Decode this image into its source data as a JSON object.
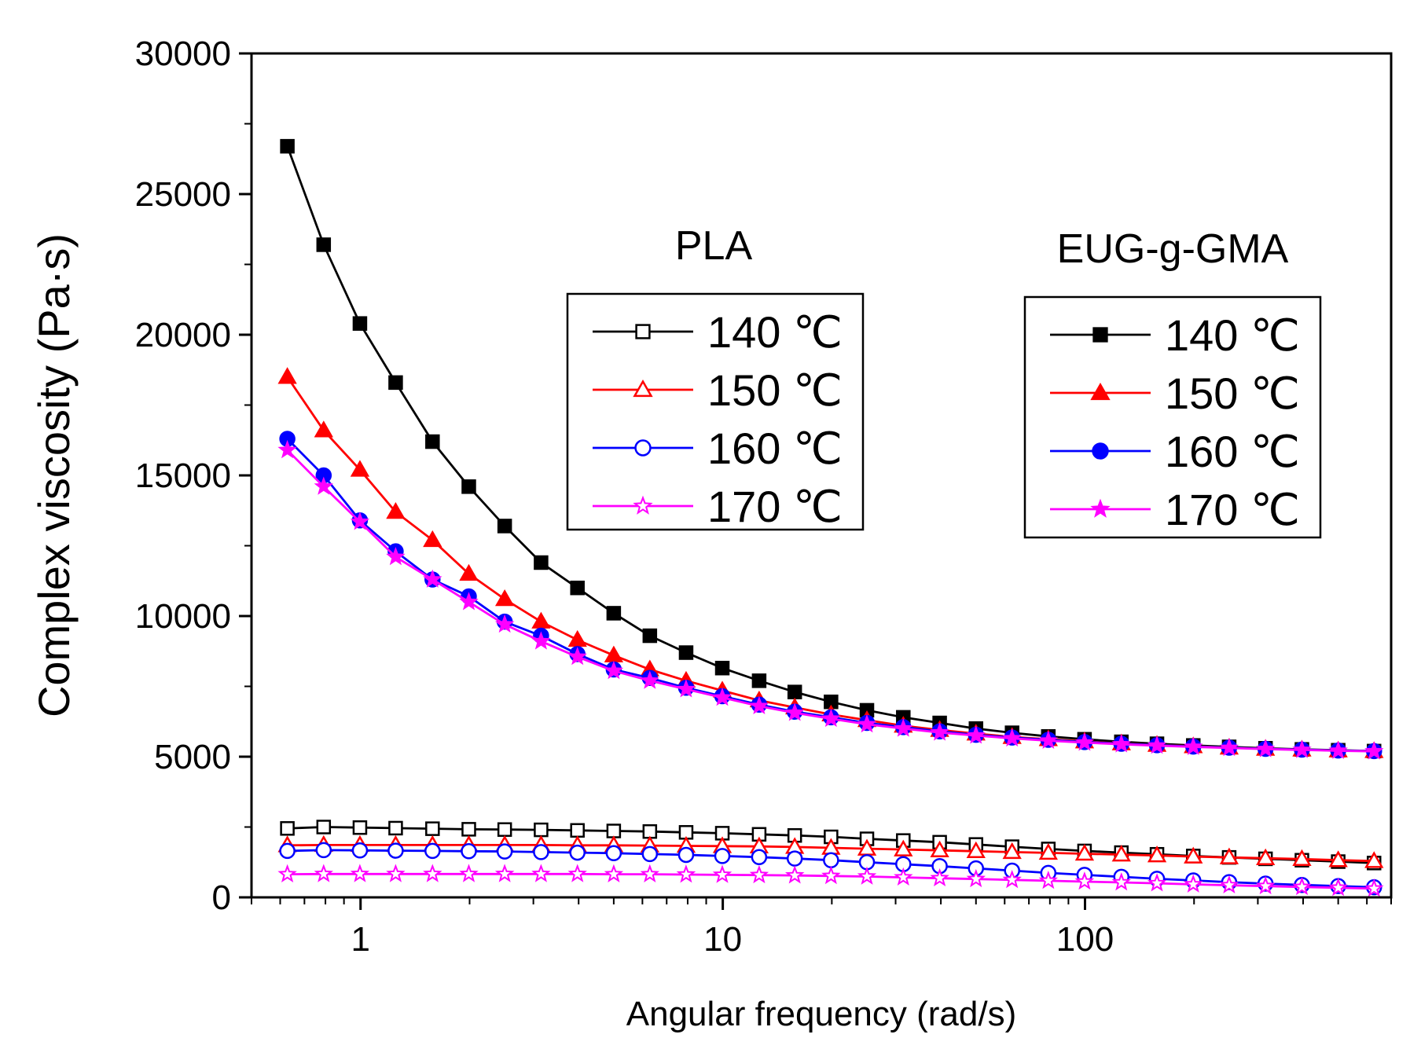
{
  "chart_data": {
    "type": "line",
    "xscale": "log",
    "xlabel": "Angular frequency (rad/s)",
    "ylabel": "Complex viscosity (Pa·s)",
    "xlim": [
      0.5,
      700
    ],
    "ylim": [
      0,
      30000
    ],
    "x_ticks": [
      1,
      10,
      100
    ],
    "x_tick_labels": [
      "1",
      "10",
      "100"
    ],
    "y_ticks": [
      0,
      5000,
      10000,
      15000,
      20000,
      25000,
      30000
    ],
    "y_tick_labels": [
      "0",
      "5000",
      "10000",
      "15000",
      "20000",
      "25000",
      "30000"
    ],
    "x": [
      0.628,
      0.791,
      0.996,
      1.25,
      1.58,
      1.99,
      2.5,
      3.15,
      3.97,
      5.0,
      6.29,
      7.92,
      9.97,
      12.6,
      15.8,
      19.9,
      25.0,
      31.5,
      39.7,
      50.0,
      62.9,
      79.2,
      99.7,
      126,
      158,
      199,
      250,
      315,
      397,
      500,
      628
    ],
    "legends": [
      {
        "title": "PLA",
        "labels": [
          "140 ℃",
          "150 ℃",
          "160 ℃",
          "170 ℃"
        ]
      },
      {
        "title": "EUG-g-GMA",
        "labels": [
          "140 ℃",
          "150 ℃",
          "160 ℃",
          "170 ℃"
        ]
      }
    ],
    "series": [
      {
        "name": "PLA 140 ℃",
        "group": "PLA",
        "color": "#000000",
        "marker": "square",
        "filled": false,
        "values": [
          2450,
          2500,
          2480,
          2460,
          2440,
          2420,
          2410,
          2400,
          2380,
          2360,
          2340,
          2310,
          2280,
          2240,
          2200,
          2150,
          2080,
          2020,
          1960,
          1880,
          1800,
          1720,
          1650,
          1590,
          1530,
          1470,
          1420,
          1370,
          1320,
          1270,
          1220
        ]
      },
      {
        "name": "PLA 150 ℃",
        "group": "PLA",
        "color": "#ff0000",
        "marker": "triangle",
        "filled": false,
        "values": [
          1850,
          1860,
          1860,
          1860,
          1860,
          1860,
          1860,
          1860,
          1850,
          1850,
          1840,
          1830,
          1820,
          1810,
          1790,
          1760,
          1730,
          1700,
          1670,
          1640,
          1610,
          1580,
          1550,
          1520,
          1490,
          1450,
          1420,
          1390,
          1360,
          1320,
          1290
        ]
      },
      {
        "name": "PLA 160 ℃",
        "group": "PLA",
        "color": "#0000ff",
        "marker": "circle",
        "filled": false,
        "values": [
          1650,
          1680,
          1670,
          1660,
          1650,
          1640,
          1630,
          1610,
          1590,
          1570,
          1540,
          1510,
          1470,
          1430,
          1380,
          1320,
          1250,
          1180,
          1110,
          1030,
          950,
          870,
          800,
          730,
          660,
          600,
          540,
          490,
          440,
          400,
          360
        ]
      },
      {
        "name": "PLA 170 ℃",
        "group": "PLA",
        "color": "#ff00ff",
        "marker": "star",
        "filled": false,
        "values": [
          820,
          830,
          830,
          830,
          830,
          830,
          830,
          830,
          830,
          820,
          820,
          810,
          800,
          790,
          780,
          760,
          740,
          710,
          680,
          650,
          620,
          590,
          560,
          530,
          500,
          460,
          430,
          400,
          370,
          340,
          310
        ]
      },
      {
        "name": "EUG-g-GMA 140 ℃",
        "group": "EUG-g-GMA",
        "color": "#000000",
        "marker": "square",
        "filled": true,
        "values": [
          26700,
          23200,
          20400,
          18300,
          16200,
          14600,
          13200,
          11900,
          11000,
          10100,
          9300,
          8700,
          8150,
          7700,
          7300,
          6950,
          6650,
          6400,
          6200,
          6000,
          5850,
          5720,
          5620,
          5530,
          5460,
          5400,
          5350,
          5300,
          5260,
          5230,
          5200
        ]
      },
      {
        "name": "EUG-g-GMA 150 ℃",
        "group": "EUG-g-GMA",
        "color": "#ff0000",
        "marker": "triangle",
        "filled": true,
        "values": [
          18500,
          16600,
          15200,
          13700,
          12700,
          11500,
          10600,
          9800,
          9150,
          8600,
          8100,
          7700,
          7350,
          7000,
          6750,
          6500,
          6300,
          6100,
          5950,
          5820,
          5700,
          5620,
          5540,
          5470,
          5420,
          5370,
          5320,
          5280,
          5250,
          5220,
          5200
        ]
      },
      {
        "name": "EUG-g-GMA 160 ℃",
        "group": "EUG-g-GMA",
        "color": "#0000ff",
        "marker": "circle",
        "filled": true,
        "values": [
          16300,
          15000,
          13400,
          12300,
          11300,
          10700,
          9800,
          9300,
          8650,
          8100,
          7800,
          7450,
          7150,
          6850,
          6600,
          6400,
          6200,
          6050,
          5900,
          5780,
          5680,
          5600,
          5520,
          5460,
          5410,
          5360,
          5320,
          5280,
          5250,
          5220,
          5200
        ]
      },
      {
        "name": "EUG-g-GMA 170 ℃",
        "group": "EUG-g-GMA",
        "color": "#ff00ff",
        "marker": "star",
        "filled": true,
        "values": [
          15900,
          14600,
          13350,
          12100,
          11300,
          10500,
          9700,
          9100,
          8550,
          8050,
          7700,
          7400,
          7100,
          6800,
          6560,
          6350,
          6150,
          6000,
          5860,
          5750,
          5650,
          5570,
          5500,
          5440,
          5390,
          5350,
          5310,
          5270,
          5240,
          5210,
          5190
        ]
      }
    ]
  }
}
